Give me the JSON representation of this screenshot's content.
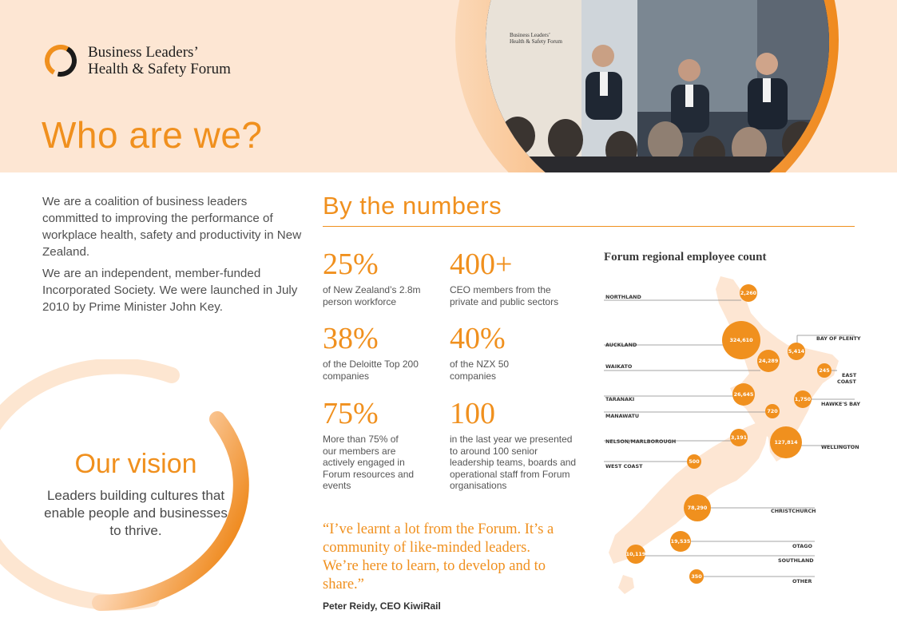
{
  "brand": {
    "line1": "Business Leaders’",
    "line2": "Health & Safety Forum"
  },
  "page_title": "Who are we?",
  "intro": {
    "p1": "We are a coalition of business leaders committed to improving the performance of workplace health, safety and productivity in New Zealand.",
    "p2": "We are an independent, member-funded Incorporated Society. We were launched in July 2010 by Prime Minister John Key."
  },
  "vision": {
    "title": "Our vision",
    "text": "Leaders building cultures that enable people and businesses to thrive."
  },
  "numbers": {
    "title": "By the numbers",
    "stats": [
      {
        "value": "25%",
        "desc": "of New Zealand’s 2.8m person workforce"
      },
      {
        "value": "400+",
        "desc": "CEO members from the private and public sectors"
      },
      {
        "value": "38%",
        "desc": "of the Deloitte Top 200 companies"
      },
      {
        "value": "40%",
        "desc": "of the NZX 50 companies"
      },
      {
        "value": "75%",
        "desc": "More than 75% of our members are actively engaged in Forum resources and events"
      },
      {
        "value": "100",
        "desc": "in the last year we presented to around 100 senior leadership teams, boards and operational staff from Forum organisations"
      }
    ]
  },
  "quote": {
    "text": "“I’ve learnt a lot from the Forum. It’s a community of like-minded leaders. We’re here to learn, to develop and to share.”",
    "author": "Peter Reidy, CEO KiwiRail"
  },
  "map": {
    "title": "Forum regional employee count",
    "regions": [
      {
        "name": "NORTHLAND",
        "count": "2,260"
      },
      {
        "name": "AUCKLAND",
        "count": "324,610"
      },
      {
        "name": "BAY OF PLENTY",
        "count": "5,414"
      },
      {
        "name": "WAIKATO",
        "count": "24,289"
      },
      {
        "name": "EAST COAST",
        "count": "245"
      },
      {
        "name": "TARANAKI",
        "count": "26,645"
      },
      {
        "name": "HAWKE'S BAY",
        "count": "1,750"
      },
      {
        "name": "MANAWATU",
        "count": "720"
      },
      {
        "name": "NELSON/MARLBOROUGH",
        "count": "3,191"
      },
      {
        "name": "WELLINGTON",
        "count": "127,814"
      },
      {
        "name": "WEST COAST",
        "count": "500"
      },
      {
        "name": "CHRISTCHURCH",
        "count": "78,290"
      },
      {
        "name": "OTAGO",
        "count": "19,535"
      },
      {
        "name": "SOUTHLAND",
        "count": "10,119"
      },
      {
        "name": "OTHER",
        "count": "350"
      }
    ],
    "east_coast_line2": "COAST"
  },
  "colors": {
    "accent": "#f0901e",
    "band": "#fde6d3",
    "map_land": "#fde6d3"
  },
  "photo_sign": {
    "line1": "Business Leaders’",
    "line2": "Health & Safety Forum"
  }
}
